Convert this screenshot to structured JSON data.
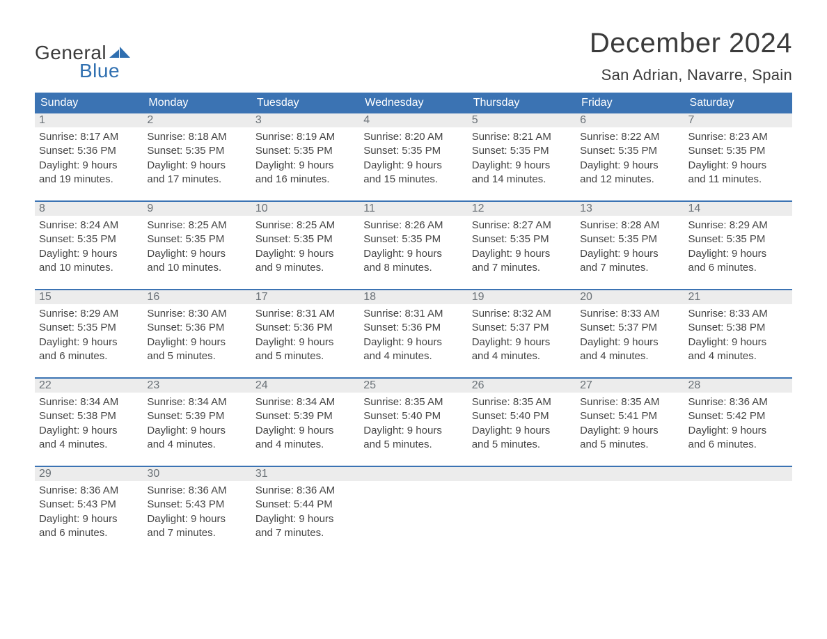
{
  "logo": {
    "text1": "General",
    "text2": "Blue",
    "flag_color": "#2f6fb0"
  },
  "title": "December 2024",
  "location": "San Adrian, Navarre, Spain",
  "colors": {
    "header_bg": "#3b73b3",
    "header_text": "#ffffff",
    "daynum_bg": "#ececec",
    "daynum_text": "#6a7177",
    "week_border": "#3b73b3",
    "body_text": "#444444",
    "background": "#ffffff"
  },
  "typography": {
    "title_fontsize": 40,
    "location_fontsize": 22,
    "dayheader_fontsize": 16,
    "daynum_fontsize": 16,
    "body_fontsize": 15,
    "logo_fontsize": 28,
    "font_family": "Arial"
  },
  "dayheaders": [
    "Sunday",
    "Monday",
    "Tuesday",
    "Wednesday",
    "Thursday",
    "Friday",
    "Saturday"
  ],
  "line_labels": {
    "sunrise": "Sunrise:",
    "sunset": "Sunset:",
    "daylight_prefix": "Daylight:"
  },
  "days": [
    {
      "n": 1,
      "sunrise": "8:17 AM",
      "sunset": "5:36 PM",
      "daylight": "9 hours and 19 minutes."
    },
    {
      "n": 2,
      "sunrise": "8:18 AM",
      "sunset": "5:35 PM",
      "daylight": "9 hours and 17 minutes."
    },
    {
      "n": 3,
      "sunrise": "8:19 AM",
      "sunset": "5:35 PM",
      "daylight": "9 hours and 16 minutes."
    },
    {
      "n": 4,
      "sunrise": "8:20 AM",
      "sunset": "5:35 PM",
      "daylight": "9 hours and 15 minutes."
    },
    {
      "n": 5,
      "sunrise": "8:21 AM",
      "sunset": "5:35 PM",
      "daylight": "9 hours and 14 minutes."
    },
    {
      "n": 6,
      "sunrise": "8:22 AM",
      "sunset": "5:35 PM",
      "daylight": "9 hours and 12 minutes."
    },
    {
      "n": 7,
      "sunrise": "8:23 AM",
      "sunset": "5:35 PM",
      "daylight": "9 hours and 11 minutes."
    },
    {
      "n": 8,
      "sunrise": "8:24 AM",
      "sunset": "5:35 PM",
      "daylight": "9 hours and 10 minutes."
    },
    {
      "n": 9,
      "sunrise": "8:25 AM",
      "sunset": "5:35 PM",
      "daylight": "9 hours and 10 minutes."
    },
    {
      "n": 10,
      "sunrise": "8:25 AM",
      "sunset": "5:35 PM",
      "daylight": "9 hours and 9 minutes."
    },
    {
      "n": 11,
      "sunrise": "8:26 AM",
      "sunset": "5:35 PM",
      "daylight": "9 hours and 8 minutes."
    },
    {
      "n": 12,
      "sunrise": "8:27 AM",
      "sunset": "5:35 PM",
      "daylight": "9 hours and 7 minutes."
    },
    {
      "n": 13,
      "sunrise": "8:28 AM",
      "sunset": "5:35 PM",
      "daylight": "9 hours and 7 minutes."
    },
    {
      "n": 14,
      "sunrise": "8:29 AM",
      "sunset": "5:35 PM",
      "daylight": "9 hours and 6 minutes."
    },
    {
      "n": 15,
      "sunrise": "8:29 AM",
      "sunset": "5:35 PM",
      "daylight": "9 hours and 6 minutes."
    },
    {
      "n": 16,
      "sunrise": "8:30 AM",
      "sunset": "5:36 PM",
      "daylight": "9 hours and 5 minutes."
    },
    {
      "n": 17,
      "sunrise": "8:31 AM",
      "sunset": "5:36 PM",
      "daylight": "9 hours and 5 minutes."
    },
    {
      "n": 18,
      "sunrise": "8:31 AM",
      "sunset": "5:36 PM",
      "daylight": "9 hours and 4 minutes."
    },
    {
      "n": 19,
      "sunrise": "8:32 AM",
      "sunset": "5:37 PM",
      "daylight": "9 hours and 4 minutes."
    },
    {
      "n": 20,
      "sunrise": "8:33 AM",
      "sunset": "5:37 PM",
      "daylight": "9 hours and 4 minutes."
    },
    {
      "n": 21,
      "sunrise": "8:33 AM",
      "sunset": "5:38 PM",
      "daylight": "9 hours and 4 minutes."
    },
    {
      "n": 22,
      "sunrise": "8:34 AM",
      "sunset": "5:38 PM",
      "daylight": "9 hours and 4 minutes."
    },
    {
      "n": 23,
      "sunrise": "8:34 AM",
      "sunset": "5:39 PM",
      "daylight": "9 hours and 4 minutes."
    },
    {
      "n": 24,
      "sunrise": "8:34 AM",
      "sunset": "5:39 PM",
      "daylight": "9 hours and 4 minutes."
    },
    {
      "n": 25,
      "sunrise": "8:35 AM",
      "sunset": "5:40 PM",
      "daylight": "9 hours and 5 minutes."
    },
    {
      "n": 26,
      "sunrise": "8:35 AM",
      "sunset": "5:40 PM",
      "daylight": "9 hours and 5 minutes."
    },
    {
      "n": 27,
      "sunrise": "8:35 AM",
      "sunset": "5:41 PM",
      "daylight": "9 hours and 5 minutes."
    },
    {
      "n": 28,
      "sunrise": "8:36 AM",
      "sunset": "5:42 PM",
      "daylight": "9 hours and 6 minutes."
    },
    {
      "n": 29,
      "sunrise": "8:36 AM",
      "sunset": "5:43 PM",
      "daylight": "9 hours and 6 minutes."
    },
    {
      "n": 30,
      "sunrise": "8:36 AM",
      "sunset": "5:43 PM",
      "daylight": "9 hours and 7 minutes."
    },
    {
      "n": 31,
      "sunrise": "8:36 AM",
      "sunset": "5:44 PM",
      "daylight": "9 hours and 7 minutes."
    }
  ],
  "calendar_layout": {
    "start_weekday": 0,
    "weeks": 5,
    "cols": 7
  }
}
